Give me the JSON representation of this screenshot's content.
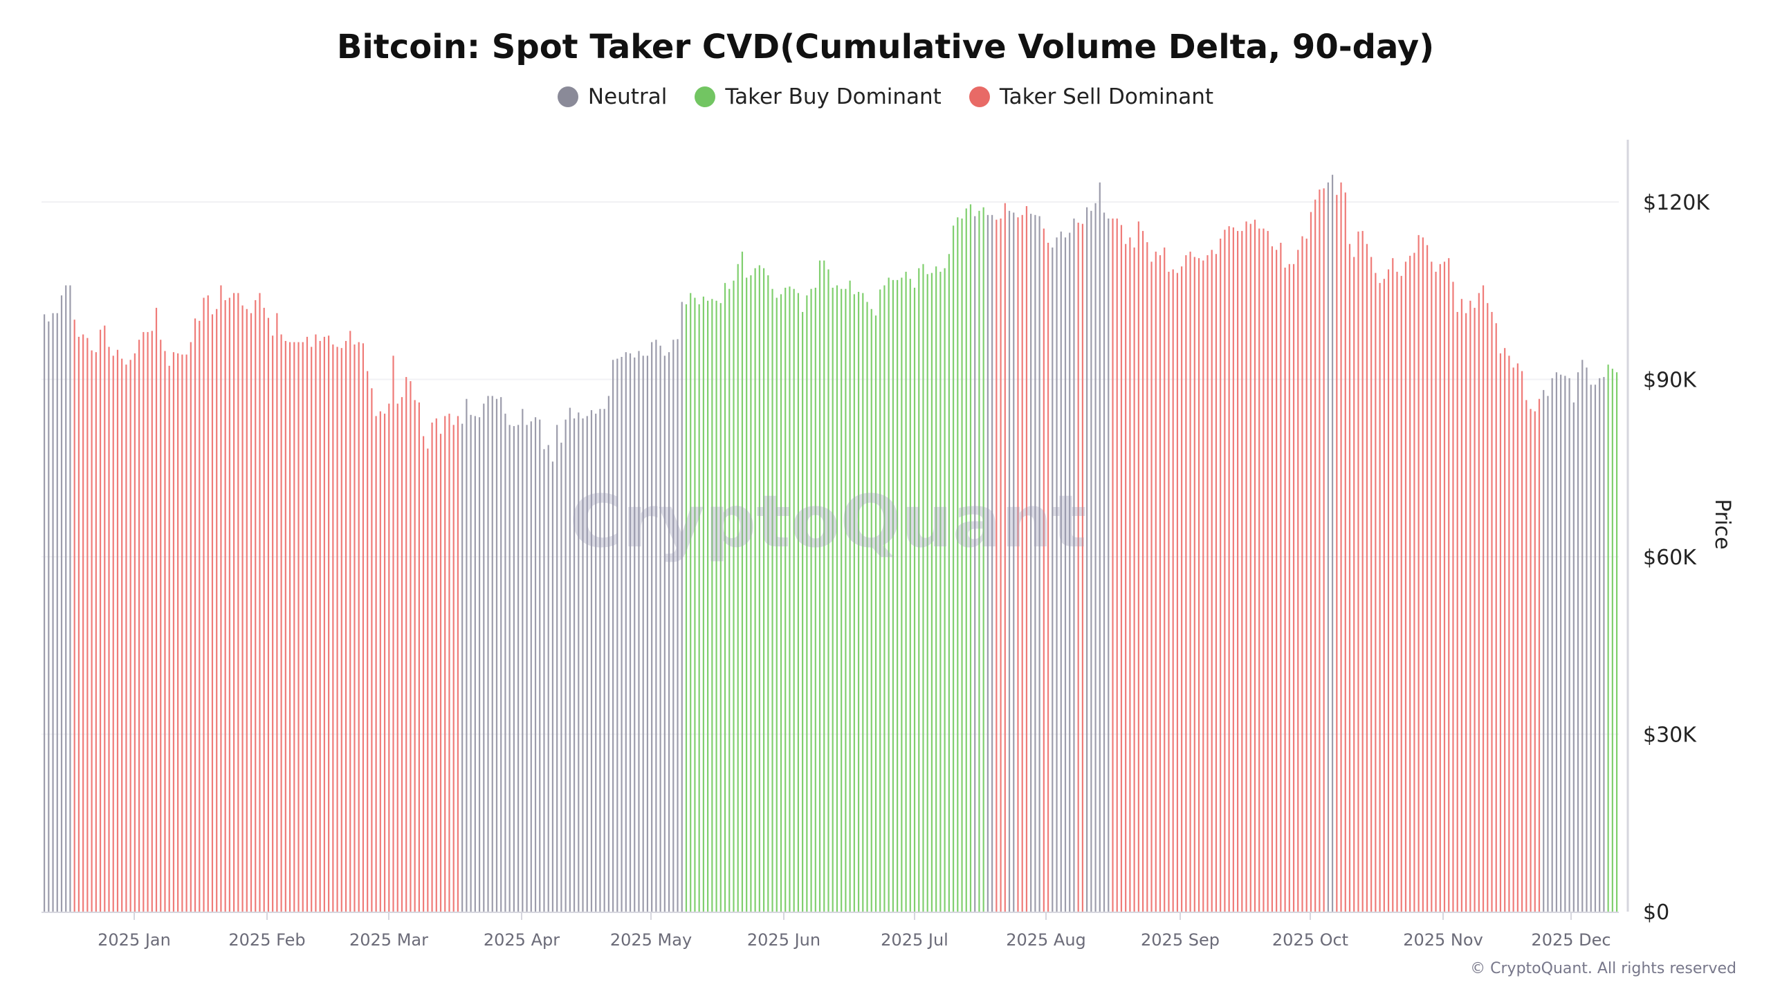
{
  "chart_data": {
    "type": "bar",
    "title": "Bitcoin: Spot Taker CVD(Cumulative Volume Delta, 90-day)",
    "ylabel": "Price",
    "ylim": [
      0,
      130000
    ],
    "y_unit": "USD",
    "y_ticks": [
      "$0",
      "$30K",
      "$60K",
      "$90K",
      "$120K"
    ],
    "y_tick_values": [
      0,
      30000,
      60000,
      90000,
      120000
    ],
    "x_ticks": [
      "2025 Jan",
      "2025 Feb",
      "2025 Mar",
      "2025 Apr",
      "2025 May",
      "2025 Jun",
      "2025 Jul",
      "2025 Aug",
      "2025 Sep",
      "2025 Oct",
      "2025 Nov",
      "2025 Dec"
    ],
    "grid": true,
    "legend_position": "top-center",
    "legend": [
      {
        "key": "N",
        "name": "Neutral",
        "color": "#8a8a98"
      },
      {
        "key": "B",
        "name": "Taker Buy Dominant",
        "color": "#72c562"
      },
      {
        "key": "S",
        "name": "Taker Sell Dominant",
        "color": "#e86a66"
      }
    ],
    "bar_colors": {
      "N": "#9c9cab",
      "B": "#80cf6e",
      "S": "#ef7b78"
    },
    "regime_runs": [
      [
        "N",
        7
      ],
      [
        "S",
        90
      ],
      [
        "N",
        52
      ],
      [
        "B",
        67
      ],
      [
        "N",
        1
      ],
      [
        "B",
        2
      ],
      [
        "N",
        2
      ],
      [
        "S",
        3
      ],
      [
        "N",
        2
      ],
      [
        "S",
        3
      ],
      [
        "N",
        3
      ],
      [
        "S",
        2
      ],
      [
        "N",
        6
      ],
      [
        "S",
        2
      ],
      [
        "N",
        6
      ],
      [
        "S",
        50
      ],
      [
        "N",
        2
      ],
      [
        "S",
        48
      ],
      [
        "N",
        15
      ],
      [
        "B",
        3
      ]
    ],
    "price_k": [
      101.0,
      99.8,
      101.2,
      101.2,
      104.2,
      105.9,
      105.9,
      100.1,
      97.2,
      97.6,
      97.0,
      94.9,
      94.6,
      98.4,
      99.1,
      95.5,
      94.0,
      95.0,
      93.5,
      92.5,
      93.3,
      94.4,
      96.7,
      98.0,
      98.0,
      98.2,
      102.1,
      96.7,
      94.8,
      92.3,
      94.6,
      94.4,
      94.2,
      94.2,
      96.3,
      100.3,
      99.9,
      103.8,
      104.2,
      101.0,
      101.9,
      105.9,
      103.4,
      103.8,
      104.6,
      104.6,
      102.5,
      101.9,
      101.2,
      103.4,
      104.6,
      102.1,
      100.4,
      97.4,
      101.2,
      97.6,
      96.5,
      96.3,
      96.3,
      96.3,
      96.3,
      97.2,
      95.5,
      97.6,
      96.5,
      97.2,
      97.4,
      95.9,
      95.5,
      95.3,
      96.5,
      98.2,
      95.9,
      96.3,
      96.1,
      91.4,
      88.5,
      83.8,
      84.6,
      84.2,
      85.9,
      94.0,
      85.9,
      87.0,
      90.4,
      89.7,
      86.5,
      86.1,
      80.4,
      78.3,
      82.7,
      83.4,
      80.8,
      83.8,
      84.2,
      82.3,
      83.8,
      82.5,
      86.7,
      84.0,
      83.8,
      83.6,
      85.9,
      87.2,
      87.2,
      86.7,
      87.0,
      84.2,
      82.3,
      82.1,
      82.3,
      85.0,
      82.3,
      82.9,
      83.6,
      83.2,
      78.2,
      78.9,
      76.1,
      82.3,
      79.3,
      83.2,
      85.2,
      83.4,
      84.4,
      83.4,
      83.8,
      84.8,
      84.2,
      85.0,
      85.0,
      87.2,
      93.3,
      93.5,
      93.8,
      94.6,
      94.4,
      93.7,
      94.8,
      94.0,
      94.0,
      96.3,
      96.7,
      95.7,
      94.0,
      94.6,
      96.7,
      96.8,
      103.1,
      102.7,
      104.6,
      103.8,
      102.7,
      104.0,
      103.3,
      103.6,
      103.3,
      102.9,
      106.3,
      105.3,
      106.7,
      109.5,
      111.6,
      107.2,
      107.6,
      108.8,
      109.3,
      108.8,
      107.6,
      105.3,
      103.8,
      104.4,
      105.5,
      105.7,
      105.3,
      104.6,
      101.4,
      104.2,
      105.3,
      105.5,
      110.1,
      110.1,
      108.6,
      105.5,
      105.9,
      105.3,
      105.3,
      106.7,
      104.4,
      104.8,
      104.6,
      103.1,
      101.9,
      100.8,
      105.2,
      105.9,
      107.2,
      106.8,
      106.8,
      107.2,
      108.2,
      107.0,
      105.5,
      108.8,
      109.5,
      107.8,
      108.0,
      109.1,
      108.2,
      108.8,
      111.2,
      116.0,
      117.4,
      117.2,
      118.9,
      119.6,
      117.6,
      118.5,
      119.1,
      117.8,
      117.8,
      117.0,
      117.2,
      119.8,
      118.5,
      118.2,
      117.4,
      117.8,
      119.3,
      118.0,
      117.8,
      117.6,
      115.5,
      113.1,
      112.3,
      114.0,
      115.0,
      114.0,
      114.8,
      117.2,
      116.5,
      116.3,
      119.1,
      118.5,
      119.8,
      123.3,
      118.2,
      117.2,
      117.2,
      117.2,
      116.1,
      112.9,
      114.0,
      112.3,
      116.7,
      115.1,
      113.2,
      109.9,
      111.6,
      111.0,
      112.3,
      108.2,
      108.6,
      108.0,
      109.1,
      111.0,
      111.6,
      110.7,
      110.5,
      110.1,
      111.0,
      111.9,
      111.2,
      113.8,
      115.3,
      115.9,
      115.7,
      115.1,
      115.1,
      116.7,
      116.3,
      117.0,
      115.5,
      115.5,
      115.1,
      112.5,
      111.9,
      113.1,
      108.9,
      109.5,
      109.5,
      111.9,
      114.2,
      113.8,
      118.3,
      120.4,
      122.1,
      122.3,
      123.3,
      124.6,
      121.2,
      123.3,
      121.6,
      112.9,
      110.7,
      115.0,
      115.1,
      112.9,
      110.7,
      108.0,
      106.3,
      107.0,
      108.6,
      110.5,
      108.2,
      107.5,
      109.9,
      110.9,
      111.4,
      114.4,
      114.0,
      112.7,
      109.9,
      108.2,
      109.5,
      109.9,
      110.5,
      106.5,
      101.4,
      103.6,
      101.2,
      103.3,
      102.1,
      104.6,
      105.9,
      102.9,
      101.4,
      99.5,
      94.4,
      95.3,
      94.0,
      92.0,
      92.7,
      91.4,
      86.5,
      85.0,
      84.6,
      86.7,
      88.2,
      87.2,
      90.2,
      91.2,
      90.8,
      90.6,
      90.2,
      86.1,
      91.2,
      93.3,
      92.0,
      89.1,
      89.1,
      90.2,
      90.4,
      92.5,
      91.8,
      91.2
    ]
  },
  "watermark": "CryptoQuant",
  "copyright": "© CryptoQuant. All rights reserved"
}
